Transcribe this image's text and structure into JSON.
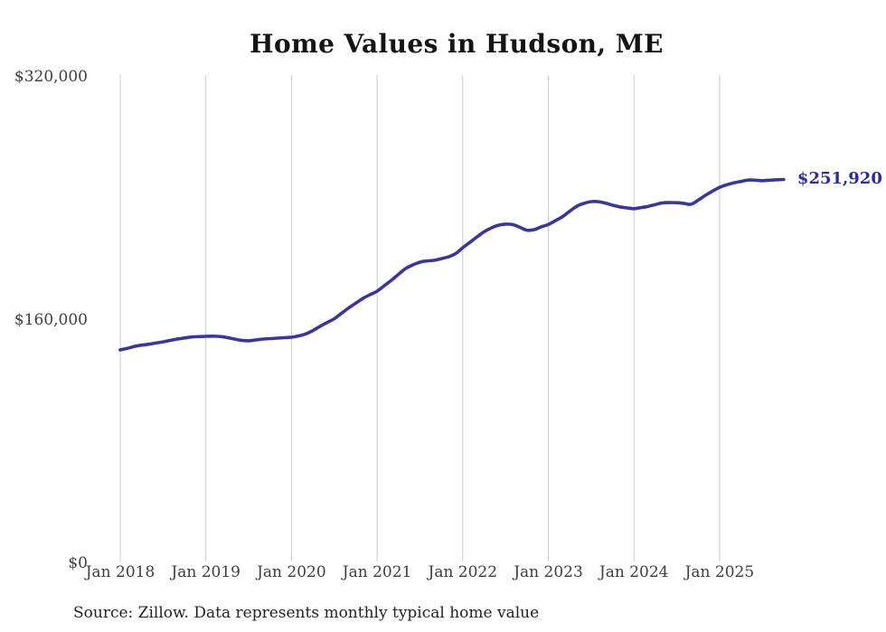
{
  "chart_data": {
    "type": "line",
    "title": "Home Values in Hudson, ME",
    "source_note": "Source: Zillow. Data represents monthly typical home value",
    "end_label": "$251,920",
    "end_value": 251920,
    "unit": "USD",
    "ylim": [
      0,
      320000
    ],
    "grid": "vertical-only",
    "legend": "none",
    "y_ticks": [
      {
        "label": "$320,000",
        "value": 320000
      },
      {
        "label": "$160,000",
        "value": 160000
      },
      {
        "label": "$0",
        "value": 0
      }
    ],
    "x_ticks": [
      {
        "label": "Jan 2018",
        "month_index": 0
      },
      {
        "label": "Jan 2019",
        "month_index": 12
      },
      {
        "label": "Jan 2020",
        "month_index": 24
      },
      {
        "label": "Jan 2021",
        "month_index": 36
      },
      {
        "label": "Jan 2022",
        "month_index": 48
      },
      {
        "label": "Jan 2023",
        "month_index": 60
      },
      {
        "label": "Jan 2024",
        "month_index": 72
      },
      {
        "label": "Jan 2025",
        "month_index": 84
      }
    ],
    "series": [
      {
        "name": "Monthly typical home value",
        "cadence": "monthly",
        "start_month": "2018-01",
        "end_month": "2025-10",
        "months": [
          "2018-01",
          "2018-02",
          "2018-03",
          "2018-04",
          "2018-05",
          "2018-06",
          "2018-07",
          "2018-08",
          "2018-09",
          "2018-10",
          "2018-11",
          "2018-12",
          "2019-01",
          "2019-02",
          "2019-03",
          "2019-04",
          "2019-05",
          "2019-06",
          "2019-07",
          "2019-08",
          "2019-09",
          "2019-10",
          "2019-11",
          "2019-12",
          "2020-01",
          "2020-02",
          "2020-03",
          "2020-04",
          "2020-05",
          "2020-06",
          "2020-07",
          "2020-08",
          "2020-09",
          "2020-10",
          "2020-11",
          "2020-12",
          "2021-01",
          "2021-02",
          "2021-03",
          "2021-04",
          "2021-05",
          "2021-06",
          "2021-07",
          "2021-08",
          "2021-09",
          "2021-10",
          "2021-11",
          "2021-12",
          "2022-01",
          "2022-02",
          "2022-03",
          "2022-04",
          "2022-05",
          "2022-06",
          "2022-07",
          "2022-08",
          "2022-09",
          "2022-10",
          "2022-11",
          "2022-12",
          "2023-01",
          "2023-02",
          "2023-03",
          "2023-04",
          "2023-05",
          "2023-06",
          "2023-07",
          "2023-08",
          "2023-09",
          "2023-10",
          "2023-11",
          "2023-12",
          "2024-01",
          "2024-02",
          "2024-03",
          "2024-04",
          "2024-05",
          "2024-06",
          "2024-07",
          "2024-08",
          "2024-09",
          "2024-10",
          "2024-11",
          "2024-12",
          "2025-01",
          "2025-02",
          "2025-03",
          "2025-04",
          "2025-05",
          "2025-06",
          "2025-07",
          "2025-08",
          "2025-09",
          "2025-10"
        ],
        "values": [
          139800,
          140800,
          142100,
          142900,
          143500,
          144300,
          145100,
          146000,
          146900,
          147600,
          148300,
          148500,
          148700,
          148800,
          148600,
          147900,
          146900,
          146100,
          145800,
          146300,
          146900,
          147200,
          147500,
          147800,
          148100,
          149000,
          150300,
          152500,
          155300,
          157800,
          160300,
          163800,
          167300,
          170500,
          173600,
          176100,
          178400,
          182000,
          185600,
          189500,
          193300,
          195700,
          197500,
          198300,
          198700,
          199800,
          201000,
          203100,
          207000,
          210500,
          214100,
          217500,
          220000,
          221800,
          222500,
          222200,
          220500,
          218500,
          218900,
          220700,
          222300,
          224800,
          227500,
          231000,
          234300,
          236200,
          237300,
          237300,
          236400,
          235000,
          233900,
          233200,
          232700,
          233400,
          234200,
          235400,
          236500,
          236700,
          236600,
          236200,
          235600,
          238300,
          241400,
          244200,
          246700,
          248400,
          249700,
          250600,
          251500,
          251400,
          251100,
          251400,
          251700,
          251920
        ]
      }
    ],
    "colors": {
      "line": "#3a3795",
      "end_label": "#2d2d99",
      "gridline": "#cccccc",
      "axis_text": "#3e3e3e",
      "title_text": "#141414",
      "source_text": "#232323",
      "background": "#ffffff"
    }
  }
}
